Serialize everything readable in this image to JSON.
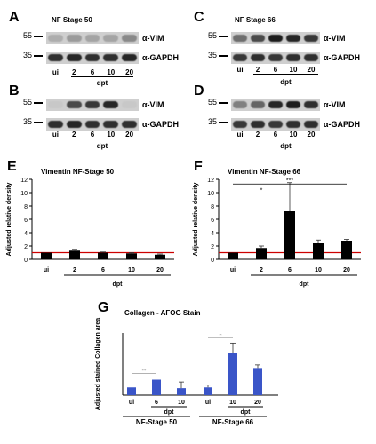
{
  "panels": {
    "A": {
      "letter": "A",
      "title": "NF Stage 50",
      "marker_top": "55",
      "marker_bot": "35",
      "band_top": "α-VIM",
      "band_bot": "α-GAPDH",
      "lanes": [
        "ui",
        "2",
        "6",
        "10",
        "20"
      ],
      "dpt": "dpt"
    },
    "B": {
      "letter": "B",
      "marker_top": "55",
      "marker_bot": "35",
      "band_top": "α-VIM",
      "band_bot": "α-GAPDH",
      "lanes": [
        "ui",
        "2",
        "6",
        "10",
        "20"
      ],
      "dpt": "dpt"
    },
    "C": {
      "letter": "C",
      "title": "NF Stage 66",
      "marker_top": "55",
      "marker_bot": "35",
      "band_top": "α-VIM",
      "band_bot": "α-GAPDH",
      "lanes": [
        "ui",
        "2",
        "6",
        "10",
        "20"
      ],
      "dpt": "dpt"
    },
    "D": {
      "letter": "D",
      "marker_top": "55",
      "marker_bot": "35",
      "band_top": "α-VIM",
      "band_bot": "α-GAPDH",
      "lanes": [
        "ui",
        "2",
        "6",
        "10",
        "20"
      ],
      "dpt": "dpt"
    },
    "E": {
      "letter": "E"
    },
    "F": {
      "letter": "F"
    },
    "G": {
      "letter": "G"
    }
  },
  "chart_data": [
    {
      "type": "bar",
      "panel": "E",
      "title": "Vimentin NF-Stage 50",
      "ylabel": "Adjusted relative density",
      "xlabel": "dpt",
      "categories": [
        "ui",
        "2",
        "6",
        "10",
        "20"
      ],
      "values": [
        1.0,
        1.3,
        1.0,
        0.9,
        0.7
      ],
      "errors": [
        0,
        0.2,
        0.1,
        0.1,
        0.1
      ],
      "ylim": [
        0,
        12
      ],
      "yticks": [
        "0",
        "2",
        "4",
        "6",
        "8",
        "10",
        "12"
      ],
      "reference_line": 1.0,
      "bar_color": "#000000",
      "line_color": "#cc0000"
    },
    {
      "type": "bar",
      "panel": "F",
      "title": "Vimentin NF-Stage 66",
      "ylabel": "Adjusted relative density",
      "xlabel": "dpt",
      "categories": [
        "ui",
        "2",
        "6",
        "10",
        "20"
      ],
      "values": [
        1.0,
        1.7,
        7.2,
        2.4,
        2.8
      ],
      "errors": [
        0,
        0.3,
        4.3,
        0.5,
        0.2
      ],
      "ylim": [
        0,
        12
      ],
      "yticks": [
        "0",
        "2",
        "4",
        "6",
        "8",
        "10",
        "12"
      ],
      "reference_line": 1.0,
      "significance": [
        "***",
        "*"
      ],
      "bar_color": "#000000",
      "line_color": "#cc0000"
    },
    {
      "type": "bar",
      "panel": "G",
      "title": "Collagen - AFOG Stain",
      "ylabel": "Adjusted stained Collagen area",
      "groups": [
        {
          "name": "NF-Stage 50",
          "categories": [
            "ui",
            "6",
            "10"
          ],
          "values": [
            1.0,
            2.0,
            0.9
          ],
          "errors": [
            0,
            0,
            0.8
          ],
          "sig": "***"
        },
        {
          "name": "NF-Stage 66",
          "categories": [
            "ui",
            "10",
            "20"
          ],
          "values": [
            1.0,
            5.4,
            3.5
          ],
          "errors": [
            0.3,
            1.3,
            0.4
          ],
          "sig": "**"
        }
      ],
      "xlabel": "dpt",
      "ylim": [
        0,
        8
      ],
      "bar_color": "#3a55c8"
    }
  ]
}
